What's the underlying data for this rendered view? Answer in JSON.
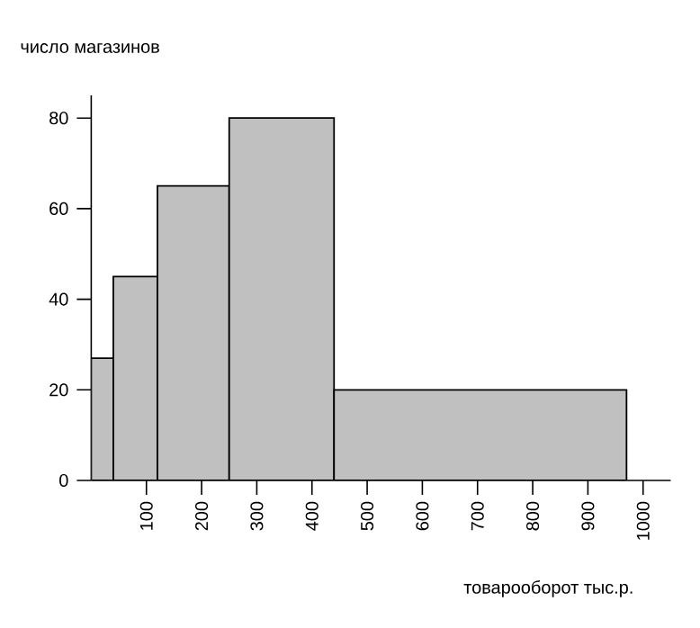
{
  "chart_data": {
    "type": "histogram",
    "xlabel": "товарооборот тыс.р.",
    "ylabel": "число магазинов",
    "bins": [
      0,
      40,
      120,
      250,
      440,
      970
    ],
    "values": [
      27,
      45,
      65,
      80,
      20
    ],
    "color": "#c0c0c0",
    "xlim": [
      0,
      1050
    ],
    "ylim": [
      0,
      85
    ],
    "xticks": [
      100,
      200,
      300,
      400,
      500,
      600,
      700,
      800,
      900,
      1000
    ],
    "yticks": [
      0,
      20,
      40,
      60,
      80
    ],
    "grid": false
  }
}
